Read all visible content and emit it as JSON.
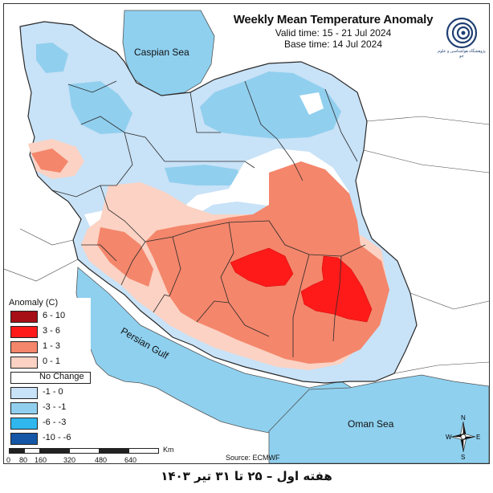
{
  "title": {
    "main": "Weekly Mean Temperature Anomaly",
    "valid": "Valid time: 15 - 21 Jul 2024",
    "base": "Base time: 14 Jul 2024"
  },
  "logo": {
    "icon": "meteorology-institute-logo",
    "text": "پژوهشگاه هواشناسی و علوم جو"
  },
  "seas": {
    "caspian": "Caspian Sea",
    "gulf": "Persian Gulf",
    "oman": "Oman Sea"
  },
  "legend": {
    "title": "Anomaly (C)",
    "items": [
      {
        "label": "6 - 10",
        "color": "#a50f15"
      },
      {
        "label": "3 - 6",
        "color": "#ff1a1a"
      },
      {
        "label": "1 - 3",
        "color": "#f4866b"
      },
      {
        "label": "0 - 1",
        "color": "#fbd2c3"
      },
      {
        "label": "No Change",
        "color": "#ffffff"
      },
      {
        "label": "-1 - 0",
        "color": "#c8e2f7"
      },
      {
        "label": "-3 - -1",
        "color": "#91cfee"
      },
      {
        "label": "-6 - -3",
        "color": "#30b7ee"
      },
      {
        "label": "-10 - -6",
        "color": "#1457a6"
      }
    ]
  },
  "scale": {
    "ticks": [
      "0",
      "80",
      "160",
      "320",
      "480",
      "640"
    ],
    "unit": "Km"
  },
  "source": "Source: ECMWF",
  "compass": {
    "icon": "north-arrow-compass-icon",
    "n": "N",
    "s": "S",
    "e": "E",
    "w": "W"
  },
  "caption": "هفته اول – ۲۵ تا ۳۱ تیر ۱۴۰۳",
  "colors": {
    "sea": "#8fd0ef",
    "land_outside": "#ffffff",
    "border": "#2a2a2a"
  }
}
